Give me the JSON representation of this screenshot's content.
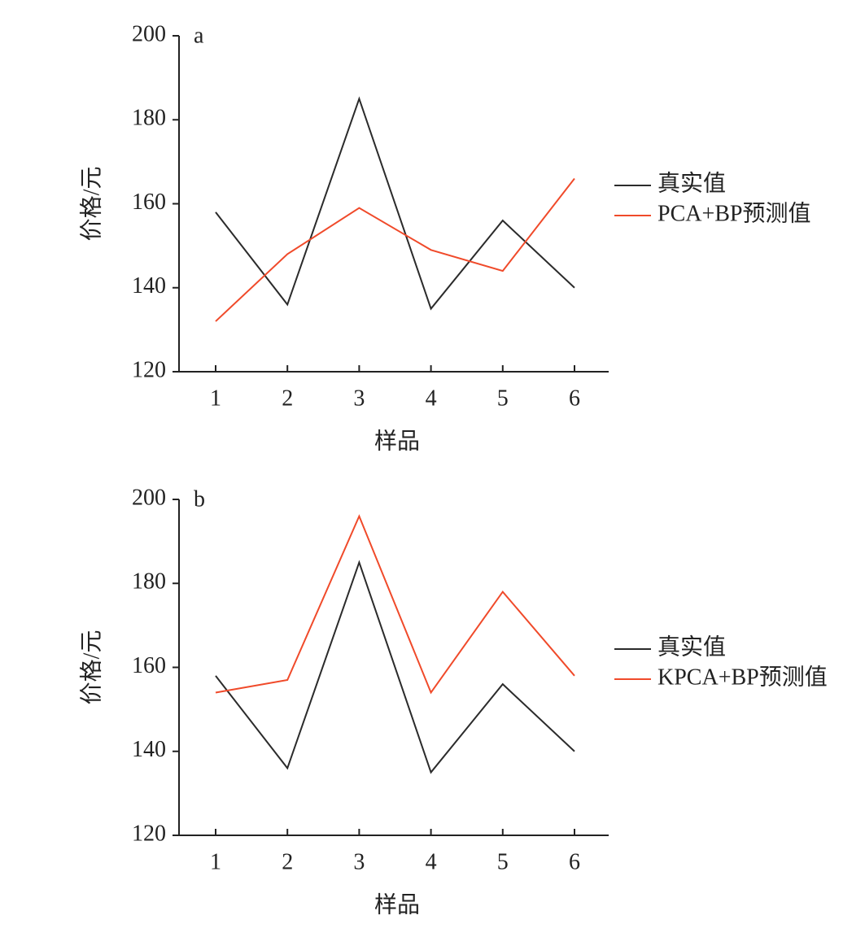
{
  "chart_data": [
    {
      "type": "line",
      "panel_label": "a",
      "x_label": "样品",
      "y_label": "价格/元",
      "categories": [
        "1",
        "2",
        "3",
        "4",
        "5",
        "6"
      ],
      "series": [
        {
          "name": "真实值",
          "color": "#2b2b2b",
          "values": [
            158,
            136,
            185,
            135,
            156,
            140
          ]
        },
        {
          "name": "PCA+BP预测值",
          "color": "#f04a2a",
          "values": [
            132,
            148,
            159,
            149,
            144,
            166
          ]
        }
      ],
      "ylim": [
        120,
        200
      ],
      "yticks": [
        120,
        140,
        160,
        180,
        200
      ],
      "legend": "right"
    },
    {
      "type": "line",
      "panel_label": "b",
      "x_label": "样品",
      "y_label": "价格/元",
      "categories": [
        "1",
        "2",
        "3",
        "4",
        "5",
        "6"
      ],
      "series": [
        {
          "name": "真实值",
          "color": "#2b2b2b",
          "values": [
            158,
            136,
            185,
            135,
            156,
            140
          ]
        },
        {
          "name": "KPCA+BP预测值",
          "color": "#f04a2a",
          "values": [
            154,
            157,
            196,
            154,
            178,
            158
          ]
        }
      ],
      "ylim": [
        120,
        200
      ],
      "yticks": [
        120,
        140,
        160,
        180,
        200
      ],
      "legend": "right"
    }
  ]
}
